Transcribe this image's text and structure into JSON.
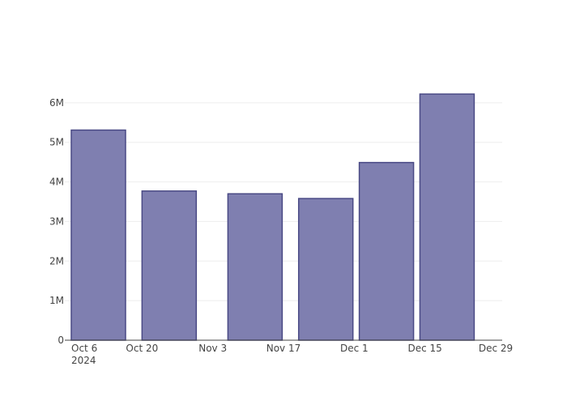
{
  "chart_data": {
    "type": "bar",
    "categories": [
      "2024-10-06",
      "2024-10-20",
      "2024-11-06",
      "2024-11-20",
      "2024-12-02",
      "2024-12-14"
    ],
    "values": [
      5310000,
      3770000,
      3700000,
      3580000,
      4490000,
      6220000
    ],
    "x_tick_labels": [
      "Oct 6",
      "Oct 20",
      "Nov 3",
      "Nov 17",
      "Dec 1",
      "Dec 15",
      "Dec 29"
    ],
    "x_tick_year_label": "2024",
    "y_tick_labels": [
      "0",
      "1M",
      "2M",
      "3M",
      "4M",
      "5M",
      "6M"
    ],
    "ylim": [
      0,
      6550000
    ],
    "grid": true,
    "colors": {
      "bar_fill": "#7f7fb0",
      "bar_stroke": "#4a4a85",
      "grid": "#eeeeee",
      "axis": "#444444"
    }
  }
}
